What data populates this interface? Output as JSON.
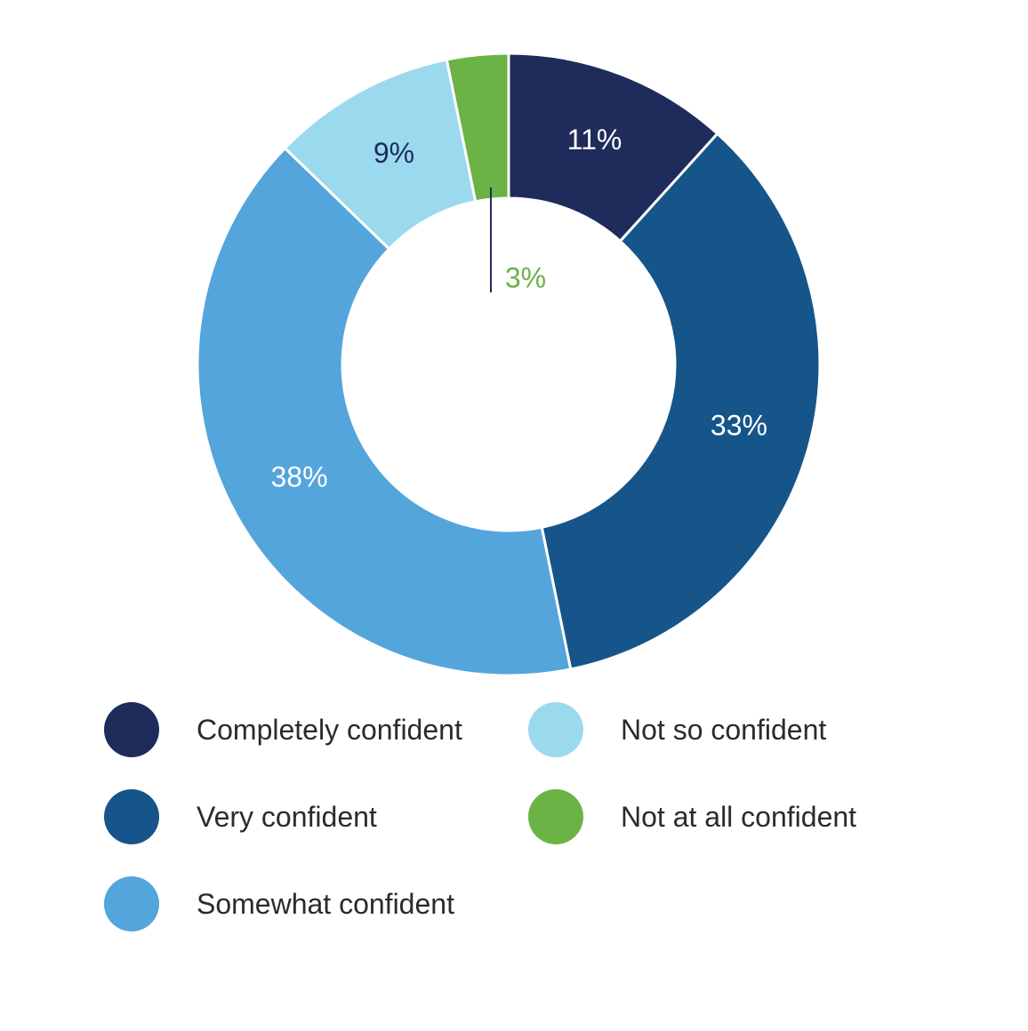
{
  "chart_data": {
    "type": "pie",
    "variant": "donut",
    "title": "",
    "categories": [
      "Completely confident",
      "Very confident",
      "Somewhat confident",
      "Not so confident",
      "Not at all confident"
    ],
    "values": [
      11,
      33,
      38,
      9,
      3
    ],
    "labels": [
      "11%",
      "33%",
      "38%",
      "9%",
      "3%"
    ],
    "colors": [
      "#1f2b5b",
      "#165589",
      "#54a5db",
      "#9bd9ef",
      "#6ab344"
    ],
    "label_colors": [
      "#ffffff",
      "#ffffff",
      "#ffffff",
      "#1f2b5b",
      "#6ab344"
    ],
    "legend_position": "bottom",
    "start_angle": "top, clockwise"
  }
}
